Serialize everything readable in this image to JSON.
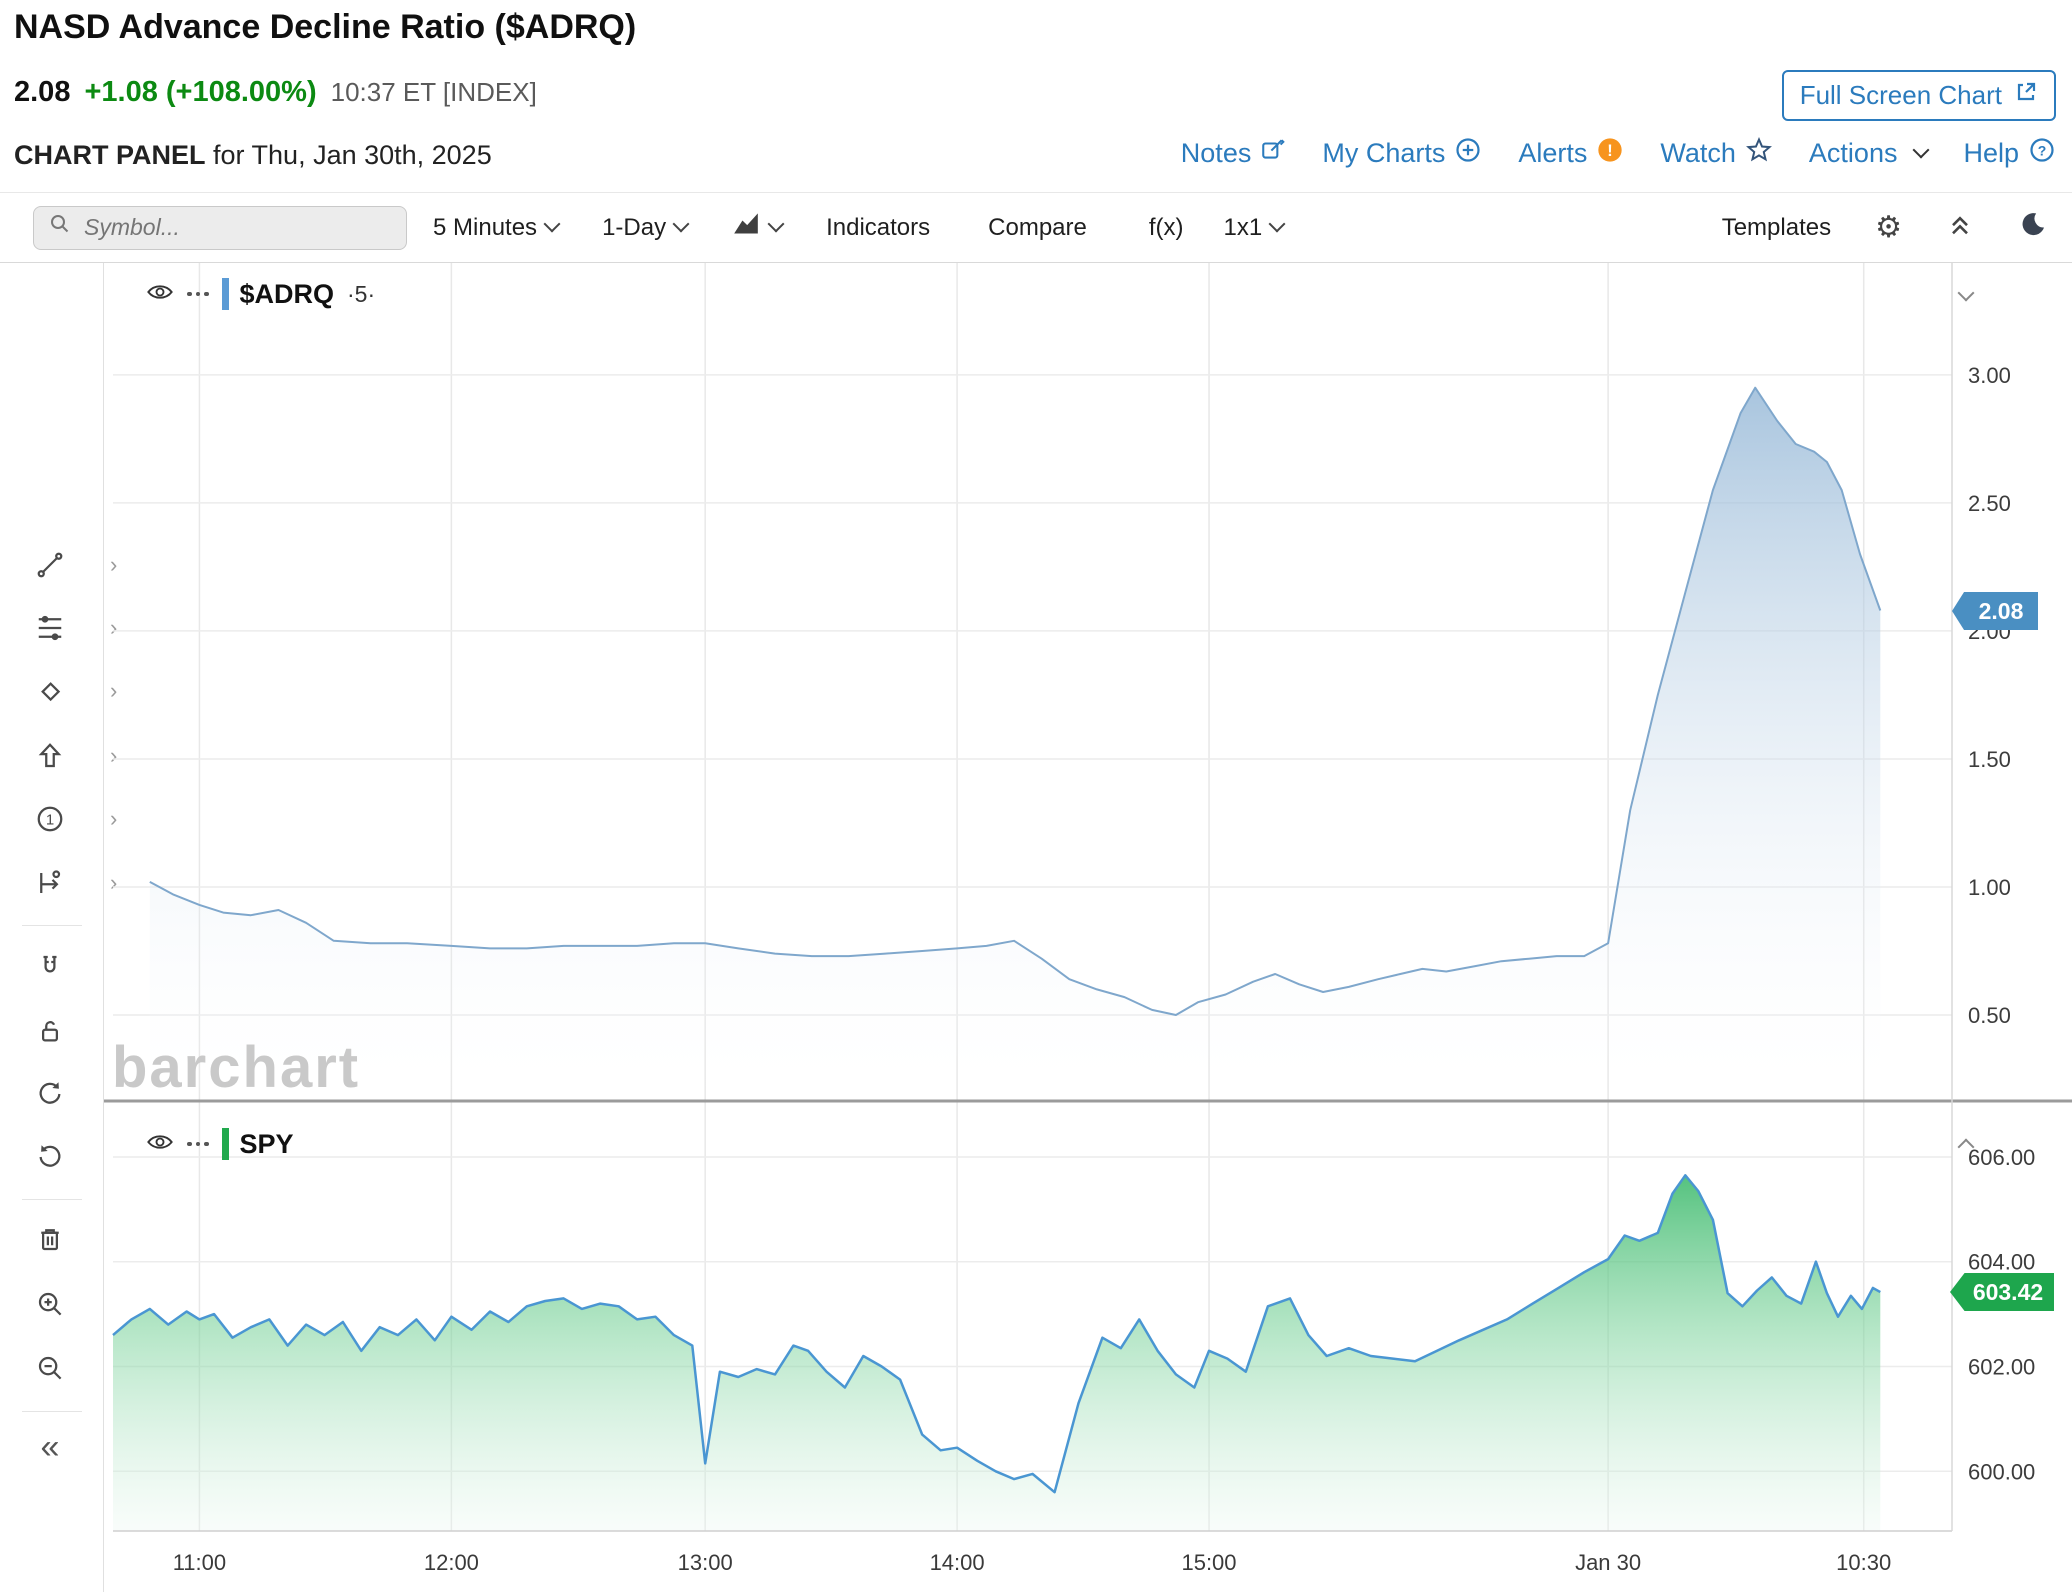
{
  "header": {
    "title": "NASD Advance Decline Ratio ($ADRQ)",
    "last_price": "2.08",
    "change": "+1.08 (+108.00%)",
    "quote_time": "10:37 ET [INDEX]",
    "full_screen_label": "Full Screen Chart",
    "panel_label": "CHART PANEL",
    "panel_date": "for Thu, Jan 30th, 2025",
    "links": {
      "notes": "Notes",
      "my_charts": "My Charts",
      "alerts": "Alerts",
      "watch": "Watch",
      "actions": "Actions",
      "help": "Help"
    }
  },
  "toolbar": {
    "symbol_placeholder": "Symbol...",
    "period": "5 Minutes",
    "range": "1-Day",
    "indicators": "Indicators",
    "compare": "Compare",
    "fx": "f(x)",
    "grid_layout": "1x1",
    "templates": "Templates",
    "icons": {
      "gear_icon": "⚙",
      "collapse_toolbar_icon": "double-chevron-up",
      "dark_mode_icon": "moon-crescent",
      "chart_type_icon": "area-chart",
      "search_icon": "magnifier"
    }
  },
  "legend": {
    "adrq_symbol": "$ADRQ",
    "adrq_interval": "·5·",
    "spy_symbol": "SPY"
  },
  "badges": {
    "adrq": "2.08",
    "spy": "603.42"
  },
  "watermark": "barchart",
  "sidebar_tools": [
    "trendline",
    "fibonacci",
    "shapes",
    "arrow",
    "annotation-number",
    "forecast",
    "magnet",
    "lock",
    "undo",
    "redo",
    "trash",
    "zoom-in",
    "zoom-out",
    "collapse"
  ],
  "colors": {
    "link_blue": "#2b7bbd",
    "change_green": "#0c8a12",
    "adrq_line": "#7fa7cc",
    "adrq_badge": "#4a8fc2",
    "spy_line": "#4a96d2",
    "spy_badge": "#1ea64d",
    "alert_orange": "#f7941e",
    "grid": "#ececec"
  },
  "chart_data": [
    {
      "name": "$ADRQ",
      "title": "NASD Advance Decline Ratio ($ADRQ)",
      "type": "area",
      "interval": "5-minute",
      "range": "1-Day",
      "ylim": [
        0.172,
        3.437
      ],
      "yticks": [
        0.5,
        1.0,
        1.5,
        2.0,
        2.5,
        3.0
      ],
      "ytick_labels": [
        "0.50",
        "1.00",
        "1.50",
        "2.00",
        "2.50",
        "3.00"
      ],
      "last_value": 2.08,
      "line_color": "#7fa7cc",
      "fill_stops": [
        {
          "offset": 0,
          "color": "#7ba6cd",
          "opacity": 0.9
        },
        {
          "offset": 1,
          "color": "#ffffff",
          "opacity": 0.02
        }
      ],
      "x_ticks": [
        {
          "label": "11:00",
          "pos": 0.047
        },
        {
          "label": "12:00",
          "pos": 0.184
        },
        {
          "label": "13:00",
          "pos": 0.322
        },
        {
          "label": "14:00",
          "pos": 0.459
        },
        {
          "label": "15:00",
          "pos": 0.596
        },
        {
          "label": "Jan 30",
          "pos": 0.813
        },
        {
          "label": "10:30",
          "pos": 0.952
        }
      ],
      "x": [
        0.02,
        0.033,
        0.047,
        0.06,
        0.075,
        0.09,
        0.105,
        0.12,
        0.14,
        0.16,
        0.184,
        0.205,
        0.225,
        0.245,
        0.265,
        0.285,
        0.305,
        0.322,
        0.34,
        0.36,
        0.38,
        0.4,
        0.42,
        0.44,
        0.459,
        0.475,
        0.49,
        0.505,
        0.52,
        0.535,
        0.55,
        0.565,
        0.578,
        0.59,
        0.605,
        0.62,
        0.632,
        0.645,
        0.658,
        0.672,
        0.688,
        0.7,
        0.712,
        0.725,
        0.74,
        0.755,
        0.77,
        0.785,
        0.8,
        0.813,
        0.825,
        0.84,
        0.855,
        0.87,
        0.885,
        0.893,
        0.905,
        0.915,
        0.925,
        0.932,
        0.94,
        0.95,
        0.961
      ],
      "values": [
        1.02,
        0.97,
        0.93,
        0.9,
        0.89,
        0.91,
        0.86,
        0.79,
        0.78,
        0.78,
        0.77,
        0.76,
        0.76,
        0.77,
        0.77,
        0.77,
        0.78,
        0.78,
        0.76,
        0.74,
        0.73,
        0.73,
        0.74,
        0.75,
        0.76,
        0.77,
        0.79,
        0.72,
        0.64,
        0.6,
        0.57,
        0.52,
        0.5,
        0.55,
        0.58,
        0.63,
        0.66,
        0.62,
        0.59,
        0.61,
        0.64,
        0.66,
        0.68,
        0.67,
        0.69,
        0.71,
        0.72,
        0.73,
        0.73,
        0.78,
        1.3,
        1.75,
        2.15,
        2.55,
        2.85,
        2.95,
        2.82,
        2.73,
        2.7,
        2.66,
        2.55,
        2.3,
        2.08
      ]
    },
    {
      "name": "SPY",
      "type": "area",
      "interval": "5-minute",
      "range": "1-Day",
      "ylim": [
        598.86,
        607.03
      ],
      "yticks": [
        600.0,
        602.0,
        604.0,
        606.0
      ],
      "ytick_labels": [
        "600.00",
        "602.00",
        "604.00",
        "606.00"
      ],
      "last_value": 603.42,
      "line_color": "#4a96d2",
      "fill_stops": [
        {
          "offset": 0,
          "color": "#0fa84a",
          "opacity": 0.95
        },
        {
          "offset": 0.55,
          "color": "#7fd49e",
          "opacity": 0.55
        },
        {
          "offset": 1,
          "color": "#eaf7f0",
          "opacity": 0.3
        }
      ],
      "x_ticks": [
        {
          "label": "11:00",
          "pos": 0.047
        },
        {
          "label": "12:00",
          "pos": 0.184
        },
        {
          "label": "13:00",
          "pos": 0.322
        },
        {
          "label": "14:00",
          "pos": 0.459
        },
        {
          "label": "15:00",
          "pos": 0.596
        },
        {
          "label": "Jan 30",
          "pos": 0.813
        },
        {
          "label": "10:30",
          "pos": 0.952
        }
      ],
      "x": [
        0.0,
        0.01,
        0.02,
        0.03,
        0.04,
        0.047,
        0.055,
        0.065,
        0.075,
        0.085,
        0.095,
        0.105,
        0.115,
        0.125,
        0.135,
        0.145,
        0.155,
        0.165,
        0.175,
        0.184,
        0.195,
        0.205,
        0.215,
        0.225,
        0.235,
        0.245,
        0.255,
        0.265,
        0.275,
        0.285,
        0.295,
        0.305,
        0.315,
        0.322,
        0.33,
        0.34,
        0.35,
        0.36,
        0.37,
        0.378,
        0.388,
        0.398,
        0.408,
        0.418,
        0.428,
        0.44,
        0.45,
        0.459,
        0.47,
        0.48,
        0.49,
        0.5,
        0.512,
        0.525,
        0.538,
        0.548,
        0.558,
        0.568,
        0.578,
        0.588,
        0.596,
        0.606,
        0.616,
        0.628,
        0.64,
        0.65,
        0.66,
        0.672,
        0.684,
        0.696,
        0.708,
        0.72,
        0.732,
        0.745,
        0.758,
        0.772,
        0.786,
        0.8,
        0.813,
        0.822,
        0.83,
        0.84,
        0.848,
        0.855,
        0.862,
        0.87,
        0.878,
        0.886,
        0.894,
        0.902,
        0.91,
        0.918,
        0.926,
        0.932,
        0.938,
        0.945,
        0.951,
        0.957,
        0.961
      ],
      "values": [
        602.6,
        602.9,
        603.1,
        602.8,
        603.05,
        602.9,
        603.0,
        602.55,
        602.75,
        602.9,
        602.4,
        602.8,
        602.6,
        602.85,
        602.3,
        602.75,
        602.6,
        602.9,
        602.5,
        602.95,
        602.7,
        603.05,
        602.85,
        603.15,
        603.25,
        603.3,
        603.1,
        603.2,
        603.15,
        602.9,
        602.95,
        602.6,
        602.4,
        600.15,
        601.9,
        601.8,
        601.95,
        601.85,
        602.4,
        602.3,
        601.9,
        601.6,
        602.2,
        602.0,
        601.75,
        600.7,
        600.4,
        600.45,
        600.2,
        600.0,
        599.85,
        599.95,
        599.6,
        601.3,
        602.55,
        602.35,
        602.9,
        602.3,
        601.85,
        601.6,
        602.3,
        602.15,
        601.9,
        603.15,
        603.3,
        602.6,
        602.2,
        602.35,
        602.2,
        602.15,
        602.1,
        602.3,
        602.5,
        602.7,
        602.9,
        603.2,
        603.5,
        603.8,
        604.05,
        604.5,
        604.4,
        604.55,
        605.3,
        605.65,
        605.35,
        604.8,
        603.4,
        603.15,
        603.45,
        603.7,
        603.35,
        603.2,
        604.0,
        603.4,
        602.95,
        603.35,
        603.1,
        603.5,
        603.42
      ]
    }
  ]
}
